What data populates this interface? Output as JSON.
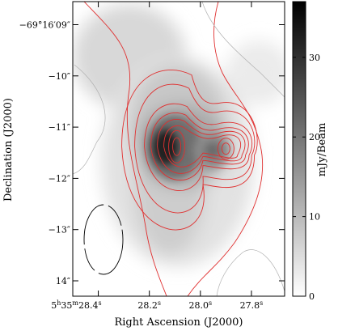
{
  "chart_data": {
    "type": "heatmap",
    "title": "",
    "xlabel": "Right Ascension (J2000)",
    "ylabel": "Declination (J2000)",
    "colorbar_label": "mJy/Beam",
    "x_ticks": [
      {
        "label": "5h35m28.4s",
        "ra_sec": 28.4
      },
      {
        "label": "28.2s",
        "ra_sec": 28.2
      },
      {
        "label": "28.0s",
        "ra_sec": 28.0
      },
      {
        "label": "27.8s",
        "ra_sec": 27.8
      }
    ],
    "x_tick_parts": {
      "first": {
        "h": "5",
        "hsup": "h",
        "m": "35",
        "msup": "m",
        "s": "28.4",
        "ssup": "s"
      },
      "rest": [
        {
          "s": "28.2",
          "ssup": "s"
        },
        {
          "s": "28.0",
          "ssup": "s"
        },
        {
          "s": "27.8",
          "ssup": "s"
        }
      ]
    },
    "y_ticks": [
      {
        "label": "−69°16′09″",
        "dec_arcsec": -9
      },
      {
        "label": "−10″",
        "dec_arcsec": -10
      },
      {
        "label": "−11″",
        "dec_arcsec": -11
      },
      {
        "label": "−12″",
        "dec_arcsec": -12
      },
      {
        "label": "−13″",
        "dec_arcsec": -13
      },
      {
        "label": "14″",
        "dec_arcsec": -14
      }
    ],
    "xlim_ra_sec": [
      28.5,
      27.67
    ],
    "ylim_dec_arcsec": [
      -14.3,
      -8.55
    ],
    "colorbar": {
      "min": 0,
      "max": 37,
      "ticks": [
        0,
        10,
        20,
        30
      ],
      "cmap": "gray_reversed"
    },
    "sources": [
      {
        "ra_sec": 28.08,
        "dec_arcsec": -11.38,
        "peak_mJy": 36
      },
      {
        "ra_sec": 27.9,
        "dec_arcsec": -11.42,
        "peak_mJy": 22
      }
    ],
    "contour_color": "#e03030",
    "beam": {
      "ra_sec": 28.38,
      "dec_arcsec": -13.2,
      "major_arcsec": 1.3,
      "minor_arcsec": 0.7
    }
  }
}
